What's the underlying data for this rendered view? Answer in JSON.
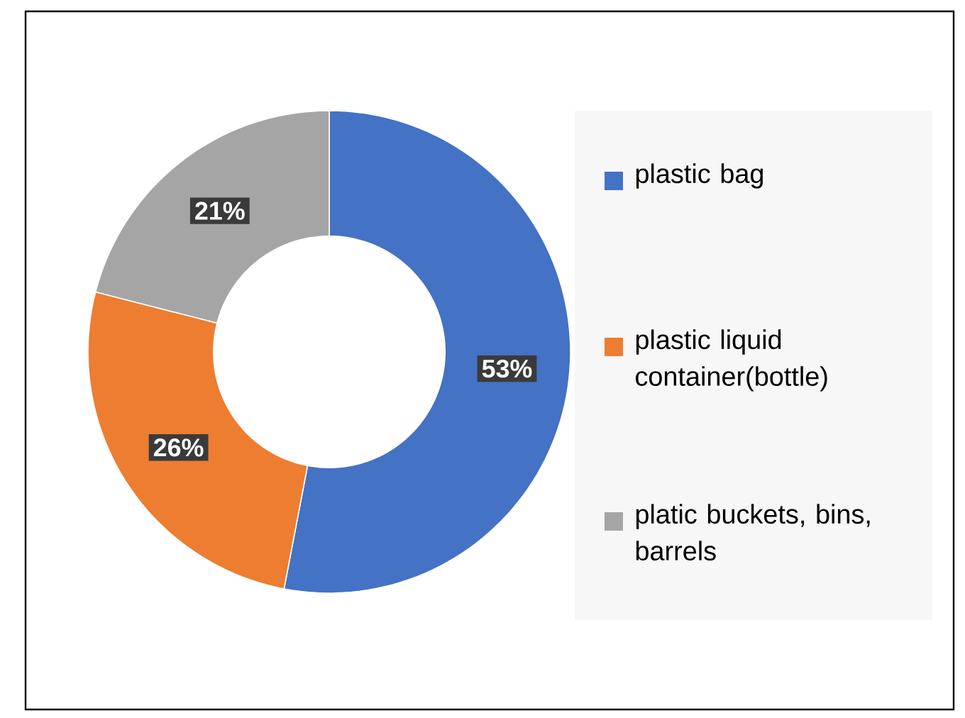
{
  "chart_data": {
    "type": "donut",
    "categories": [
      "plastic bag",
      "plastic liquid container(bottle)",
      "platic buckets, bins, barrels"
    ],
    "values": [
      53,
      26,
      21
    ],
    "colors": [
      "#4472c4",
      "#ed7d31",
      "#a5a5a5"
    ],
    "value_labels": [
      "53%",
      "26%",
      "21%"
    ],
    "legend": "right"
  }
}
